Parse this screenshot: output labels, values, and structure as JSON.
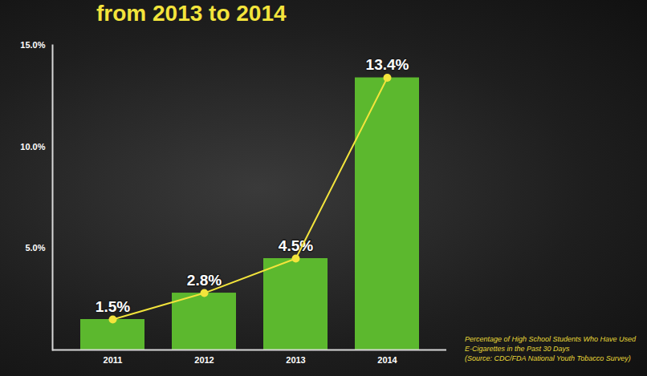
{
  "chart_data": {
    "type": "bar",
    "title": "from 2013 to 2014",
    "categories": [
      "2011",
      "2012",
      "2013",
      "2014"
    ],
    "series": [
      {
        "type": "bar",
        "color": "#5cb82e",
        "values": [
          1.5,
          2.8,
          4.5,
          13.4
        ],
        "value_labels": [
          "1.5%",
          "2.8%",
          "4.5%",
          "13.4%"
        ]
      },
      {
        "type": "line",
        "color": "#f3e43c",
        "marker": "circle",
        "values": [
          1.5,
          2.8,
          4.5,
          13.4
        ]
      }
    ],
    "ylim": [
      0,
      15
    ],
    "yticks": [
      {
        "value": 5,
        "label": "5.0%"
      },
      {
        "value": 10,
        "label": "10.0%"
      },
      {
        "value": 15,
        "label": "15.0%"
      }
    ],
    "grid": false,
    "data_labels": true,
    "annotations": [
      "Percentage of High School Students Who Have Used E-Cigarettes in the Past 30 Days",
      "(Source: CDC/FDA National Youth Tobacco Survey)"
    ]
  }
}
